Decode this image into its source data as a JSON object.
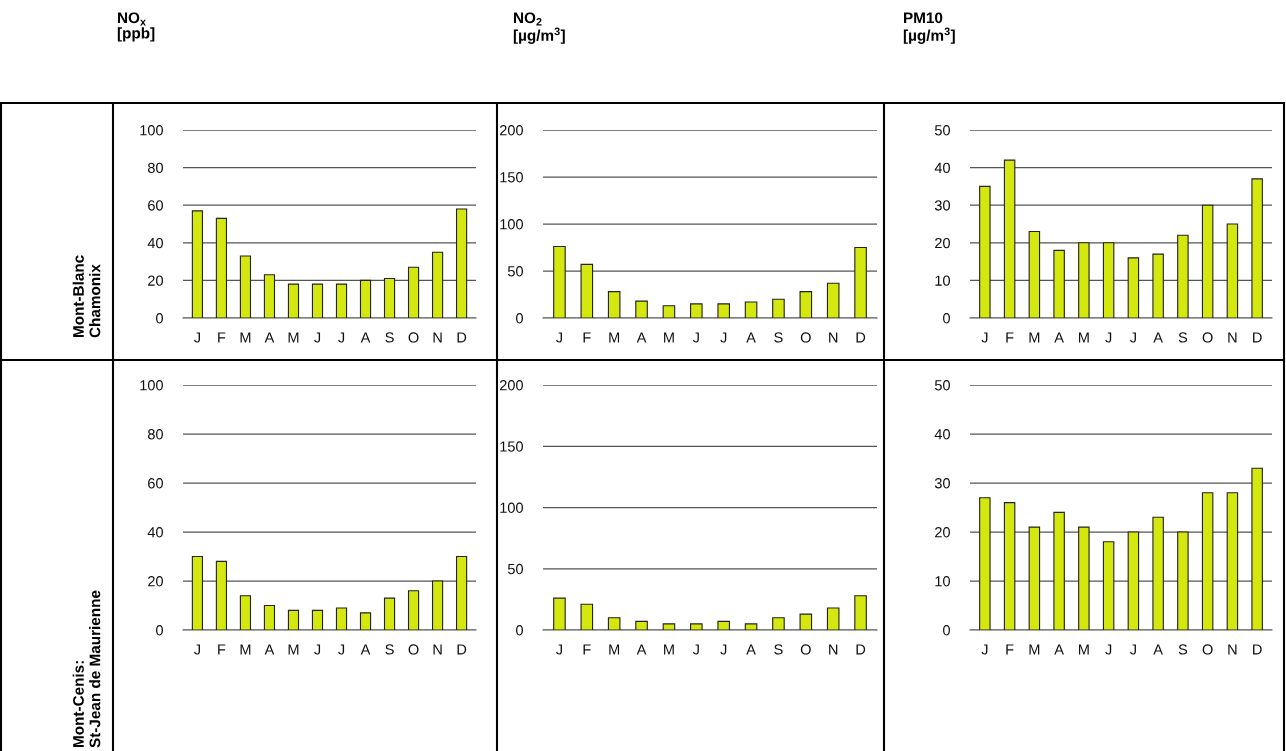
{
  "chart_data": [
    {
      "type": "bar",
      "title": "NO$_{x}$\n[ppb]",
      "ylabel": "Mont-Blanc\nChamonix",
      "categories": [
        "J",
        "F",
        "M",
        "A",
        "M",
        "J",
        "J",
        "A",
        "S",
        "O",
        "N",
        "D"
      ],
      "values": [
        57,
        53,
        33,
        23,
        18,
        18,
        18,
        20,
        21,
        27,
        35,
        58
      ],
      "color": "#d4e80f",
      "ylim": [
        0,
        100
      ],
      "yticks": [
        0,
        20,
        40,
        60,
        80,
        100
      ],
      "grid": "y"
    },
    {
      "type": "bar",
      "title": "NO$_{2}$\n[µg/m$^{3}$]",
      "categories": [
        "J",
        "F",
        "M",
        "A",
        "M",
        "J",
        "J",
        "A",
        "S",
        "O",
        "N",
        "D"
      ],
      "values": [
        76,
        57,
        28,
        18,
        13,
        15,
        15,
        17,
        20,
        28,
        37,
        75
      ],
      "color": "#d4e80f",
      "ylim": [
        0,
        200
      ],
      "yticks": [
        0,
        50,
        100,
        150,
        200
      ],
      "grid": "y"
    },
    {
      "type": "bar",
      "title": "PM10\n[µg/m$^{3}$]",
      "categories": [
        "J",
        "F",
        "M",
        "A",
        "M",
        "J",
        "J",
        "A",
        "S",
        "O",
        "N",
        "D"
      ],
      "values": [
        35,
        42,
        23,
        18,
        20,
        20,
        16,
        17,
        22,
        30,
        25,
        37
      ],
      "color": "#d4e80f",
      "ylim": [
        0,
        50
      ],
      "yticks": [
        0,
        10,
        20,
        30,
        40,
        50
      ],
      "grid": "y"
    },
    {
      "type": "bar",
      "ylabel": "Mont-Cenis:\nSt-Jean de Maurienne",
      "categories": [
        "J",
        "F",
        "M",
        "A",
        "M",
        "J",
        "J",
        "A",
        "S",
        "O",
        "N",
        "D"
      ],
      "values": [
        30,
        28,
        14,
        10,
        8,
        8,
        9,
        7,
        13,
        16,
        20,
        30
      ],
      "color": "#d4e80f",
      "ylim": [
        0,
        100
      ],
      "yticks": [
        0,
        20,
        40,
        60,
        80,
        100
      ],
      "grid": "y"
    },
    {
      "type": "bar",
      "categories": [
        "J",
        "F",
        "M",
        "A",
        "M",
        "J",
        "J",
        "A",
        "S",
        "O",
        "N",
        "D"
      ],
      "values": [
        26,
        21,
        10,
        7,
        5,
        5,
        7,
        5,
        10,
        13,
        18,
        28
      ],
      "color": "#d4e80f",
      "ylim": [
        0,
        200
      ],
      "yticks": [
        0,
        50,
        100,
        150,
        200
      ],
      "grid": "y"
    },
    {
      "type": "bar",
      "categories": [
        "J",
        "F",
        "M",
        "A",
        "M",
        "J",
        "J",
        "A",
        "S",
        "O",
        "N",
        "D"
      ],
      "values": [
        27,
        26,
        21,
        24,
        21,
        18,
        20,
        23,
        20,
        28,
        28,
        33
      ],
      "color": "#d4e80f",
      "ylim": [
        0,
        50
      ],
      "yticks": [
        0,
        10,
        20,
        30,
        40,
        50
      ],
      "grid": "y"
    }
  ]
}
